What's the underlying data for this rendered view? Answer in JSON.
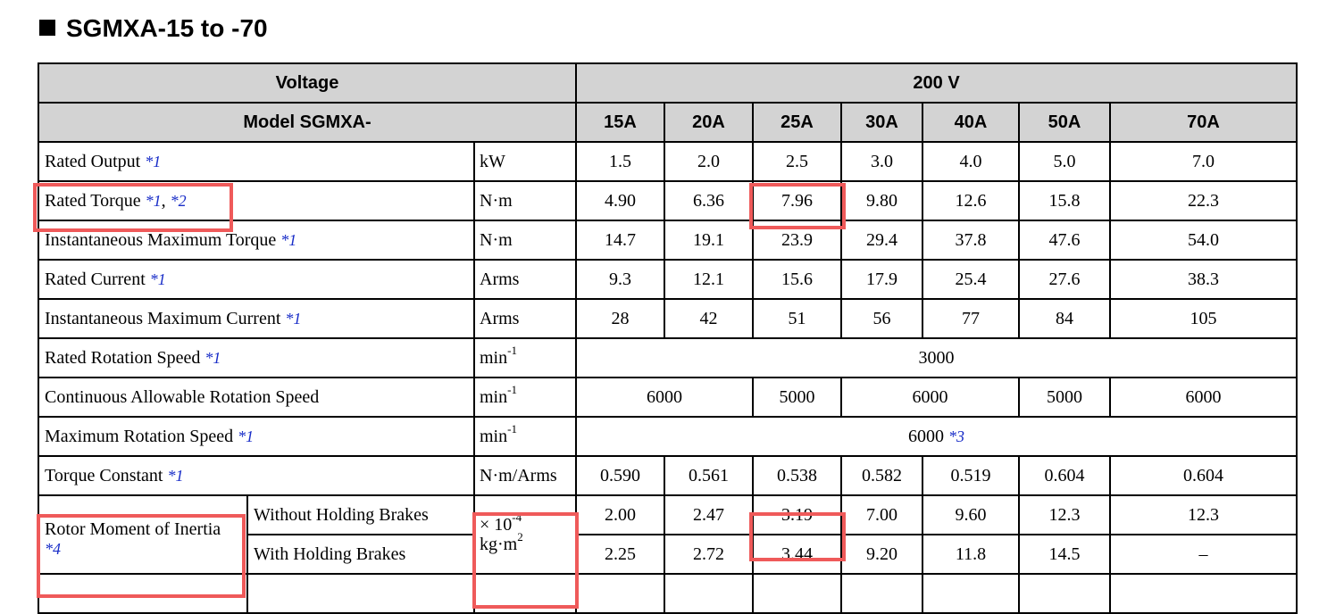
{
  "title": "SGMXA-15 to -70",
  "header": {
    "voltage_label": "Voltage",
    "voltage_value": "200 V",
    "model_label": "Model SGMXA-",
    "models": [
      "15A",
      "20A",
      "25A",
      "30A",
      "40A",
      "50A",
      "70A"
    ]
  },
  "rows": {
    "rated_output": {
      "label": "Rated Output",
      "note": "*1",
      "unit": "kW",
      "values": [
        "1.5",
        "2.0",
        "2.5",
        "3.0",
        "4.0",
        "5.0",
        "7.0"
      ]
    },
    "rated_torque": {
      "label": "Rated Torque",
      "note1": "*1",
      "sep": ",",
      "note2": "*2",
      "unit": "N·m",
      "values": [
        "4.90",
        "6.36",
        "7.96",
        "9.80",
        "12.6",
        "15.8",
        "22.3"
      ]
    },
    "inst_max_torque": {
      "label": "Instantaneous Maximum Torque",
      "note": "*1",
      "unit": "N·m",
      "values": [
        "14.7",
        "19.1",
        "23.9",
        "29.4",
        "37.8",
        "47.6",
        "54.0"
      ]
    },
    "rated_current": {
      "label": "Rated Current",
      "note": "*1",
      "unit": "Arms",
      "values": [
        "9.3",
        "12.1",
        "15.6",
        "17.9",
        "25.4",
        "27.6",
        "38.3"
      ]
    },
    "inst_max_current": {
      "label": "Instantaneous Maximum Current",
      "note": "*1",
      "unit": "Arms",
      "values": [
        "28",
        "42",
        "51",
        "56",
        "77",
        "84",
        "105"
      ]
    },
    "rated_speed": {
      "label": "Rated Rotation Speed",
      "note": "*1",
      "unit_base": "min",
      "unit_sup": "-1",
      "value": "3000"
    },
    "cont_speed": {
      "label": "Continuous Allowable Rotation Speed",
      "unit_base": "min",
      "unit_sup": "-1",
      "values": [
        "6000",
        "5000",
        "6000",
        "5000",
        "6000"
      ]
    },
    "max_speed": {
      "label": "Maximum Rotation Speed",
      "note": "*1",
      "unit_base": "min",
      "unit_sup": "-1",
      "value": "6000",
      "value_note": "*3"
    },
    "torque_constant": {
      "label": "Torque Constant",
      "note": "*1",
      "unit": "N·m/Arms",
      "values": [
        "0.590",
        "0.561",
        "0.538",
        "0.582",
        "0.519",
        "0.604",
        "0.604"
      ]
    },
    "rotor_inertia": {
      "label": "Rotor Moment of Inertia",
      "note": "*4",
      "unit_line1": "× 10",
      "unit_line1_sup": "-4",
      "unit_line2": "kg·m",
      "unit_line2_sup": "2",
      "without": {
        "label": "Without Holding Brakes",
        "values": [
          "2.00",
          "2.47",
          "3.19",
          "7.00",
          "9.60",
          "12.3",
          "12.3"
        ]
      },
      "with": {
        "label": "With Holding Brakes",
        "values": [
          "2.25",
          "2.72",
          "3.44",
          "9.20",
          "11.8",
          "14.5",
          "–"
        ]
      }
    }
  },
  "highlight_color": "#ef5a5a"
}
